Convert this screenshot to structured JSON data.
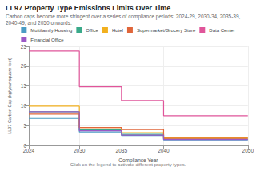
{
  "chart_data": {
    "type": "line",
    "title": "LL97 Property Type Emissions Limits Over Time",
    "subtitle": "Carbon caps become more stringent over a series of compliance periods: 2024-29, 2030-34, 2035-39, 2040-49, and 2050 onwards.",
    "x_label": "Compliance Year",
    "y_label": "LL97 Carbon Cap (kg/year square foot)",
    "annotations": [
      "Click on the legend to activate different property types."
    ],
    "x": [
      2024,
      2030,
      2035,
      2040,
      2050
    ],
    "series": [
      {
        "name": "Multifamily Housing",
        "color": "#4a9cc4",
        "values": [
          6.8,
          3.4,
          2.5,
          1.4,
          1.4
        ]
      },
      {
        "name": "Office",
        "color": "#3aaa8a",
        "values": [
          8.5,
          3.9,
          2.8,
          1.6,
          1.6
        ]
      },
      {
        "name": "Hotel",
        "color": "#f2b01e",
        "values": [
          9.9,
          4.5,
          3.2,
          1.9,
          1.9
        ]
      },
      {
        "name": "Supermarket/Grocery Store",
        "color": "#e0663a",
        "values": [
          7.9,
          4.5,
          4.0,
          1.8,
          1.8
        ]
      },
      {
        "name": "Data Center",
        "color": "#e0559a",
        "values": [
          23.8,
          14.8,
          11.3,
          7.5,
          7.5
        ]
      },
      {
        "name": "Financial Office",
        "color": "#9b59c6",
        "values": [
          8.5,
          3.7,
          2.6,
          1.5,
          1.5
        ]
      }
    ],
    "xlim": [
      2024,
      2050
    ],
    "xticks": [
      2024,
      2030,
      2035,
      2040,
      2050
    ],
    "ylim": [
      0,
      25
    ],
    "yticks": [
      0,
      5,
      10,
      15,
      20,
      25
    ],
    "grid": true,
    "legend": "top",
    "marker": "none",
    "line_style": "step"
  }
}
